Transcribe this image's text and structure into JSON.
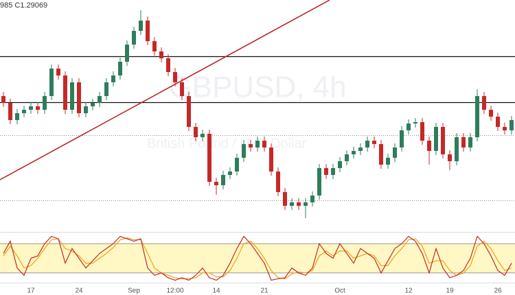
{
  "chart_data": [
    {
      "type": "candlestick",
      "title": "GBPUSD, 4h",
      "subtitle": "British Pound / U.S. Dollar",
      "ohlc_label": "985  C1.29069",
      "categories": [
        null,
        null,
        null,
        null,
        "17",
        null,
        null,
        null,
        null,
        null,
        null,
        "24",
        null,
        null,
        null,
        null,
        null,
        null,
        null,
        "Sep",
        null,
        null,
        null,
        null,
        null,
        "12:00",
        null,
        null,
        null,
        null,
        null,
        "14",
        null,
        null,
        null,
        null,
        null,
        null,
        "21",
        null,
        null,
        null,
        null,
        null,
        null,
        null,
        null,
        null,
        null,
        "Oct",
        null,
        null,
        null,
        null,
        null,
        null,
        null,
        null,
        null,
        "12",
        null,
        null,
        null,
        null,
        null,
        "19",
        null,
        null,
        null,
        null,
        null,
        null,
        "26",
        null,
        null
      ],
      "open": [
        1.317,
        1.3145,
        1.30825,
        1.31075,
        1.312,
        1.31325,
        1.312,
        1.317,
        1.327,
        1.3245,
        1.312,
        1.322,
        1.31075,
        1.31325,
        1.3145,
        1.317,
        1.322,
        1.3245,
        1.3295,
        1.33575,
        1.34075,
        1.3445,
        1.337,
        1.33325,
        1.33075,
        1.32575,
        1.322,
        1.317,
        1.30575,
        1.302,
        1.30325,
        1.28575,
        1.2845,
        1.28825,
        1.2895,
        1.2945,
        1.2995,
        1.29825,
        1.30075,
        1.29825,
        1.2895,
        1.282,
        1.277,
        1.27825,
        1.277,
        1.27825,
        1.28075,
        1.29075,
        1.28825,
        1.29075,
        1.29325,
        1.29575,
        1.297,
        1.29825,
        1.30075,
        1.2995,
        1.292,
        1.2945,
        1.29825,
        1.3045,
        1.307,
        1.3075,
        1.30075,
        1.297,
        1.30575,
        1.29575,
        1.29325,
        1.302,
        1.29825,
        1.302,
        1.317,
        1.312,
        1.3095,
        1.30575,
        1.3045
      ],
      "high": [
        1.3185,
        1.316,
        1.31225,
        1.3135,
        1.31475,
        1.31475,
        1.3185,
        1.3285,
        1.3285,
        1.326,
        1.3235,
        1.3235,
        1.31475,
        1.316,
        1.3185,
        1.3235,
        1.326,
        1.331,
        1.33725,
        1.34225,
        1.34825,
        1.346,
        1.3385,
        1.33475,
        1.33225,
        1.32725,
        1.3235,
        1.3185,
        1.30725,
        1.30475,
        1.30475,
        1.28725,
        1.28975,
        1.291,
        1.296,
        1.301,
        1.301,
        1.30225,
        1.30225,
        1.29975,
        1.291,
        1.2835,
        1.27975,
        1.27975,
        1.27975,
        1.28225,
        1.29225,
        1.29225,
        1.29225,
        1.29475,
        1.29725,
        1.2985,
        1.29975,
        1.30225,
        1.30225,
        1.301,
        1.296,
        1.29975,
        1.306,
        1.3085,
        1.309,
        1.309,
        1.30225,
        1.30725,
        1.30725,
        1.29725,
        1.3035,
        1.3035,
        1.3035,
        1.3195,
        1.3185,
        1.3135,
        1.311,
        1.30725,
        1.30975
      ],
      "low": [
        1.313,
        1.30675,
        1.30675,
        1.30925,
        1.3105,
        1.3105,
        1.3105,
        1.3155,
        1.323,
        1.3105,
        1.3105,
        1.30925,
        1.30925,
        1.31175,
        1.313,
        1.3155,
        1.3205,
        1.323,
        1.328,
        1.33425,
        1.33925,
        1.3355,
        1.33175,
        1.32925,
        1.32425,
        1.3205,
        1.3155,
        1.30425,
        1.3005,
        1.3005,
        1.28425,
        1.281,
        1.283,
        1.28675,
        1.288,
        1.293,
        1.29675,
        1.29675,
        1.29675,
        1.288,
        1.2805,
        1.2755,
        1.2755,
        1.2755,
        1.2725,
        1.27675,
        1.27925,
        1.28675,
        1.28675,
        1.28925,
        1.29175,
        1.29425,
        1.2955,
        1.29675,
        1.298,
        1.2905,
        1.2905,
        1.293,
        1.29675,
        1.303,
        1.3055,
        1.29925,
        1.292,
        1.2955,
        1.29425,
        1.29,
        1.29175,
        1.29675,
        1.29675,
        1.3005,
        1.3105,
        1.308,
        1.30425,
        1.303,
        1.303
      ],
      "close": [
        1.3145,
        1.30825,
        1.31075,
        1.312,
        1.31325,
        1.312,
        1.317,
        1.327,
        1.3245,
        1.312,
        1.322,
        1.31075,
        1.31325,
        1.3145,
        1.317,
        1.322,
        1.3245,
        1.3295,
        1.33575,
        1.34075,
        1.3445,
        1.337,
        1.33325,
        1.33075,
        1.32575,
        1.322,
        1.317,
        1.30575,
        1.302,
        1.30325,
        1.28575,
        1.2845,
        1.28825,
        1.2895,
        1.2945,
        1.2995,
        1.29825,
        1.30075,
        1.29825,
        1.2895,
        1.282,
        1.277,
        1.27825,
        1.277,
        1.27825,
        1.28075,
        1.29075,
        1.28825,
        1.29075,
        1.29325,
        1.29575,
        1.297,
        1.29825,
        1.30075,
        1.2995,
        1.292,
        1.2945,
        1.29825,
        1.3045,
        1.307,
        1.3075,
        1.30075,
        1.297,
        1.30575,
        1.29575,
        1.29325,
        1.302,
        1.29825,
        1.302,
        1.317,
        1.312,
        1.3095,
        1.30575,
        1.3045,
        1.30825
      ],
      "up_color": "#2e7d5b",
      "down_color": "#c62828",
      "ylim": [
        1.2675,
        1.352
      ],
      "levels": [
        {
          "value": 1.3315,
          "style": "solid"
        },
        {
          "value": 1.31475,
          "style": "solid"
        },
        {
          "value": 1.30275,
          "style": "dotted"
        },
        {
          "value": 1.279,
          "style": "dotted"
        }
      ]
    },
    {
      "type": "line",
      "series": [
        {
          "color": "#c62828",
          "values": [
            60,
            85,
            30,
            15,
            50,
            55,
            80,
            95,
            90,
            40,
            70,
            50,
            30,
            45,
            60,
            70,
            80,
            95,
            90,
            85,
            90,
            30,
            15,
            20,
            10,
            5,
            10,
            5,
            15,
            30,
            10,
            5,
            15,
            40,
            70,
            95,
            80,
            60,
            40,
            5,
            8,
            10,
            30,
            20,
            15,
            30,
            80,
            60,
            50,
            80,
            60,
            40,
            70,
            60,
            50,
            20,
            45,
            70,
            80,
            95,
            85,
            60,
            20,
            70,
            30,
            10,
            15,
            25,
            50,
            95,
            80,
            55,
            25,
            15,
            40
          ]
        },
        {
          "color": "#f59e0b",
          "values": [
            55,
            75,
            55,
            30,
            35,
            50,
            70,
            88,
            90,
            70,
            65,
            55,
            40,
            40,
            50,
            60,
            72,
            88,
            92,
            88,
            88,
            60,
            30,
            20,
            15,
            10,
            8,
            8,
            10,
            20,
            20,
            12,
            12,
            25,
            50,
            80,
            85,
            70,
            50,
            25,
            10,
            8,
            18,
            22,
            20,
            25,
            55,
            65,
            55,
            65,
            65,
            50,
            55,
            60,
            55,
            35,
            35,
            55,
            70,
            88,
            90,
            75,
            40,
            45,
            45,
            25,
            15,
            20,
            35,
            75,
            85,
            70,
            45,
            25,
            30
          ]
        }
      ],
      "band": [
        20,
        80
      ],
      "band_color": "#fff8c4",
      "ylim": [
        0,
        100
      ]
    }
  ]
}
